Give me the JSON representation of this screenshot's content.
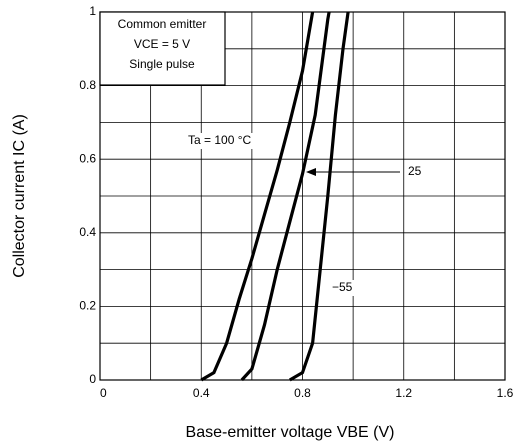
{
  "chart_data": {
    "type": "line",
    "xlabel": "Base-emitter voltage   VBE    (V)",
    "ylabel": "Collector current   IC   (A)",
    "annotations": [
      "Common emitter",
      "VCE = 5 V",
      "Single pulse"
    ],
    "xlim": [
      0,
      1.6
    ],
    "xticks": [
      0,
      0.4,
      0.8,
      1.2,
      1.6
    ],
    "xgrid": [
      0.2,
      0.6,
      1.0,
      1.4
    ],
    "ylim": [
      0,
      1
    ],
    "yticks": [
      0,
      0.2,
      0.4,
      0.6,
      0.8,
      1
    ],
    "ygrid": [
      0.1,
      0.3,
      0.5,
      0.7,
      0.9
    ],
    "grid": true,
    "series": [
      {
        "name": "Ta = 100 °C",
        "color": "#000000",
        "x": [
          0.4,
          0.45,
          0.5,
          0.55,
          0.6,
          0.65,
          0.7,
          0.75,
          0.8,
          0.84
        ],
        "values": [
          0,
          0.02,
          0.1,
          0.22,
          0.33,
          0.45,
          0.57,
          0.7,
          0.84,
          1
        ]
      },
      {
        "name": "25",
        "color": "#000000",
        "x": [
          0.56,
          0.6,
          0.65,
          0.7,
          0.75,
          0.8,
          0.85,
          0.9,
          0.905
        ],
        "values": [
          0,
          0.03,
          0.15,
          0.3,
          0.43,
          0.56,
          0.72,
          0.98,
          1
        ]
      },
      {
        "name": "−55",
        "color": "#000000",
        "x": [
          0.75,
          0.8,
          0.84,
          0.87,
          0.9,
          0.93,
          0.96,
          0.98
        ],
        "values": [
          0,
          0.02,
          0.1,
          0.3,
          0.5,
          0.72,
          0.9,
          1
        ]
      }
    ]
  }
}
